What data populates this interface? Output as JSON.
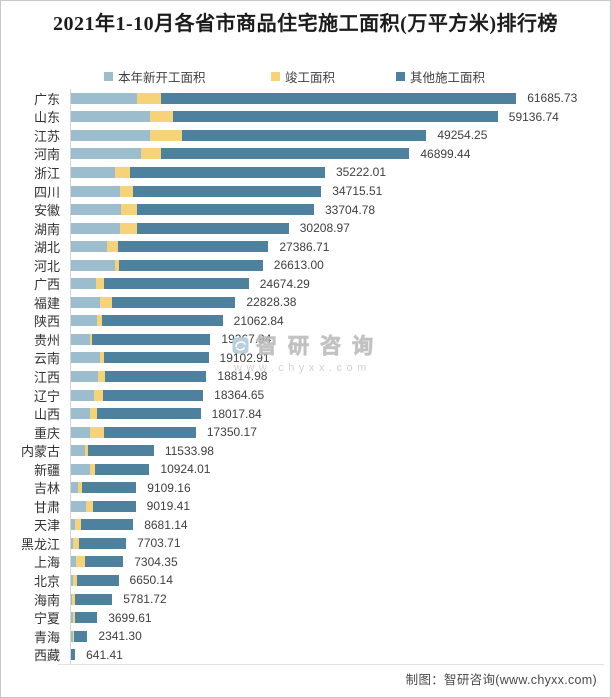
{
  "title": "2021年1-10月各省市商品住宅施工面积(万平方米)排行榜",
  "legend": [
    {
      "label": "本年新开工面积",
      "color": "#9cbdce"
    },
    {
      "label": "竣工面积",
      "color": "#f6d378"
    },
    {
      "label": "其他施工面积",
      "color": "#4d819d"
    }
  ],
  "watermark": {
    "brand": "智研咨询",
    "url": "www.chyxx.com"
  },
  "footer": "制图：智研咨询(www.chyxx.com)",
  "chart_data": {
    "type": "bar",
    "orientation": "horizontal",
    "stacked": true,
    "title": "2021年1-10月各省市商品住宅施工面积(万平方米)排行榜",
    "unit": "万平方米",
    "legend_position": "top",
    "grid": false,
    "xlim": [
      0,
      65000
    ],
    "value_labels": "outside-end",
    "categories": [
      "广东",
      "山东",
      "江苏",
      "河南",
      "浙江",
      "四川",
      "安徽",
      "湖南",
      "湖北",
      "河北",
      "广西",
      "福建",
      "陕西",
      "贵州",
      "云南",
      "江西",
      "辽宁",
      "山西",
      "重庆",
      "内蒙古",
      "新疆",
      "吉林",
      "甘肃",
      "天津",
      "黑龙江",
      "上海",
      "北京",
      "海南",
      "宁夏",
      "青海",
      "西藏"
    ],
    "totals": [
      "61685.73",
      "59136.74",
      "49254.25",
      "46899.44",
      "35222.01",
      "34715.51",
      "33704.78",
      "30208.97",
      "27386.71",
      "26613.00",
      "24674.29",
      "22828.38",
      "21062.84",
      "19367.94",
      "19102.91",
      "18814.98",
      "18364.65",
      "18017.84",
      "17350.17",
      "11533.98",
      "10924.01",
      "9109.16",
      "9019.41",
      "8681.14",
      "7703.71",
      "7304.35",
      "6650.14",
      "5781.72",
      "3699.61",
      "2341.30",
      "641.41"
    ],
    "series": [
      {
        "name": "本年新开工面积",
        "color": "#9cbdce",
        "values": [
          9231,
          10989,
          11072,
          9826,
          6228,
          6879,
          7058,
          6782,
          5038,
          6228,
          3557,
          4152,
          3695,
          2630,
          4014,
          3834,
          3239,
          2768,
          2630,
          1938,
          2768,
          1066,
          2173,
          554,
          415,
          789,
          415,
          235,
          415,
          332,
          30
        ]
      },
      {
        "name": "竣工面积",
        "color": "#f6d378",
        "values": [
          3322,
          3266,
          4387,
          2727,
          2076,
          1841,
          2131,
          2408,
          1522,
          554,
          1066,
          1619,
          650,
          374,
          554,
          969,
          1246,
          886,
          2076,
          471,
          692,
          512,
          927,
          927,
          747,
          1287,
          471,
          415,
          277,
          180,
          20
        ]
      },
      {
        "name": "其他施工面积",
        "color": "#4d819d",
        "values": [
          49132.73,
          44881.74,
          33795.25,
          34346.44,
          26918.01,
          25995.51,
          24515.78,
          21018.97,
          20826.71,
          19831.0,
          20051.29,
          17057.38,
          16717.84,
          16363.94,
          14534.91,
          14011.98,
          13879.65,
          14363.84,
          12644.17,
          9124.98,
          7464.01,
          7531.16,
          5919.41,
          7200.14,
          6541.71,
          5228.35,
          5764.14,
          5131.72,
          3007.61,
          1829.3,
          591.41
        ]
      }
    ]
  }
}
